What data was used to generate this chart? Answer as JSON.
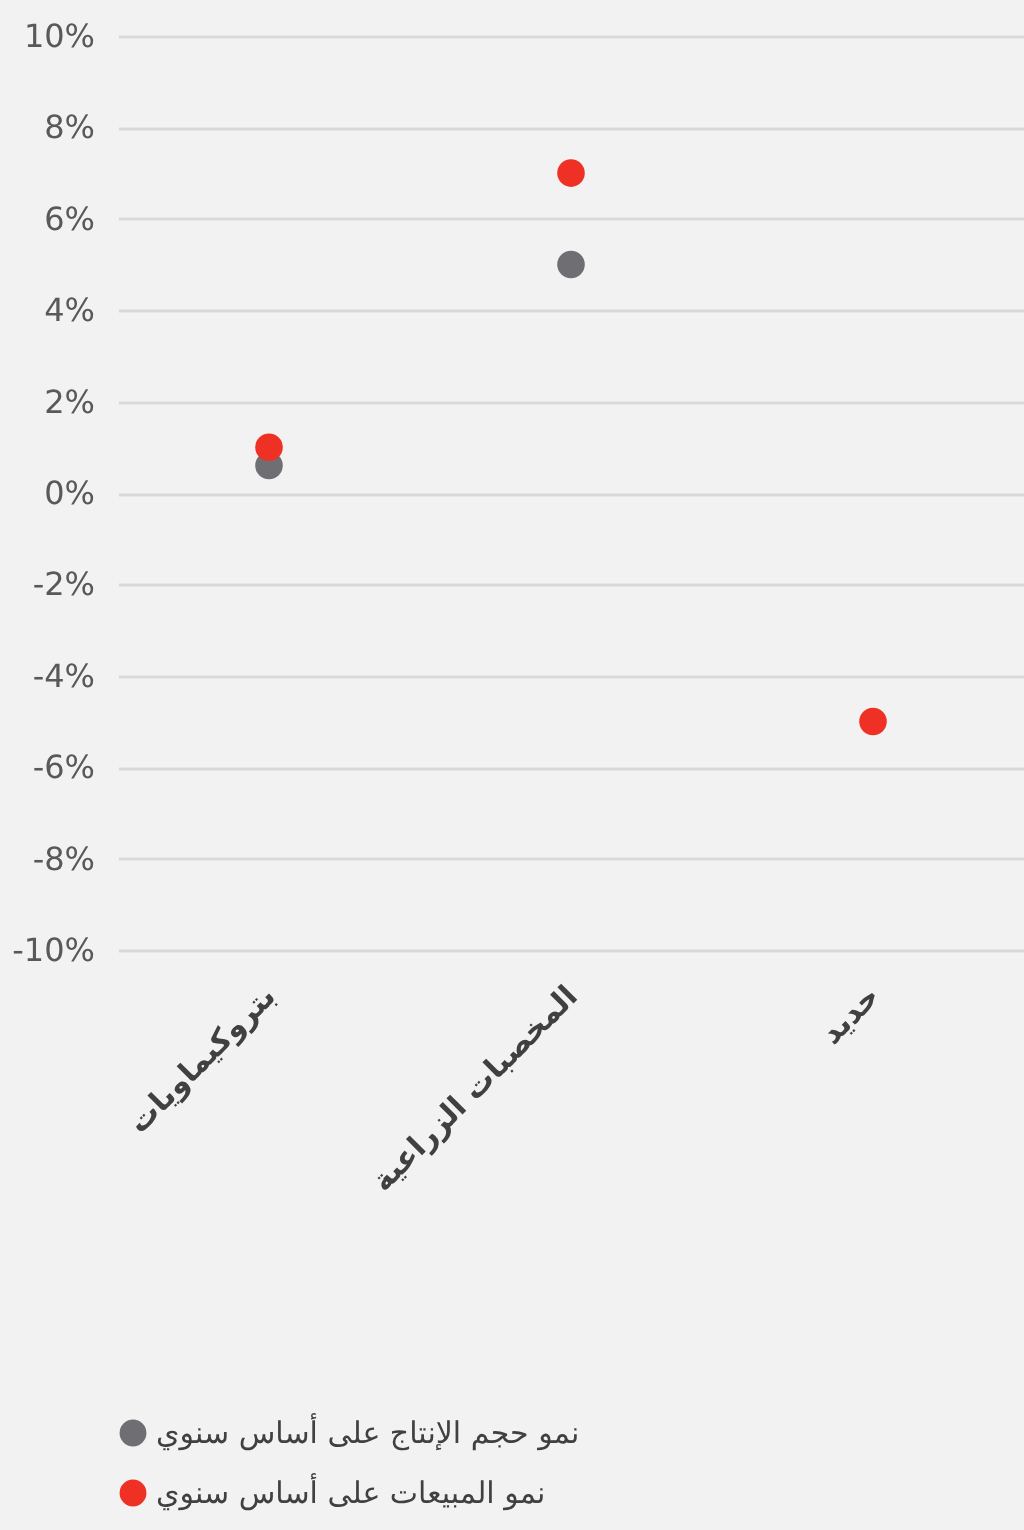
{
  "chart_data": {
    "type": "scatter",
    "categories": [
      "بتروكيماويات",
      "المخصبات الزراعية",
      "حديد"
    ],
    "series": [
      {
        "name": "نمو حجم الإنتاج على أساس سنوي",
        "color": "#6f6f73",
        "values": [
          0.6,
          5,
          null
        ]
      },
      {
        "name": "نمو المبيعات على أساس سنوي",
        "color": "#ee3124",
        "values": [
          1,
          7,
          -5
        ]
      }
    ],
    "ylim": [
      -10,
      10
    ],
    "yticks": [
      {
        "value": -10,
        "label": "-10%"
      },
      {
        "value": -8,
        "label": "-8%"
      },
      {
        "value": -6,
        "label": "-6%"
      },
      {
        "value": -4,
        "label": "-4%"
      },
      {
        "value": -2,
        "label": "-2%"
      },
      {
        "value": 0,
        "label": "0%"
      },
      {
        "value": 2,
        "label": "2%"
      },
      {
        "value": 4,
        "label": "4%"
      },
      {
        "value": 6,
        "label": "6%"
      },
      {
        "value": 8,
        "label": "8%"
      },
      {
        "value": 10,
        "label": "10%"
      }
    ],
    "grid": "y",
    "legend": "bottom",
    "marker": "circle"
  }
}
